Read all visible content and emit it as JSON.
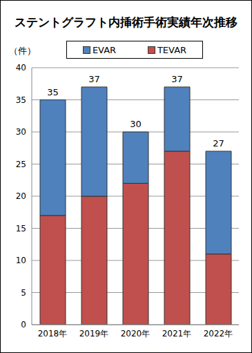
{
  "chart_data": {
    "type": "bar",
    "title": "ステントグラフト内挿術手術実績年次推移",
    "y_label": "（件）",
    "categories": [
      "2018年",
      "2019年",
      "2020年",
      "2021年",
      "2022年"
    ],
    "series": [
      {
        "name": "EVAR",
        "color": "#4f81bd",
        "values": [
          18,
          17,
          8,
          10,
          16
        ]
      },
      {
        "name": "TEVAR",
        "color": "#c0504d",
        "values": [
          17,
          20,
          22,
          27,
          11
        ]
      }
    ],
    "totals": [
      35,
      37,
      30,
      37,
      27
    ],
    "stacked": true,
    "ylim": [
      0,
      40
    ],
    "yticks": [
      0,
      5,
      10,
      15,
      20,
      25,
      30,
      35,
      40
    ],
    "grid": true,
    "legend": "top"
  }
}
